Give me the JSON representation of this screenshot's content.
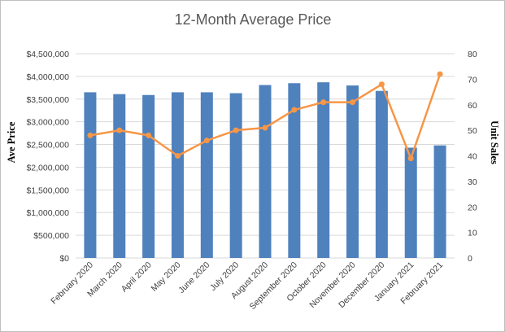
{
  "chart_data": {
    "type": "bar",
    "title": "12-Month Average Price",
    "xlabel": "",
    "ylabel": "Ave Price",
    "y2label": "Unit Sales",
    "categories": [
      "February 2020",
      "March 2020",
      "April 2020",
      "May 2020",
      "June 2020",
      "July 2020",
      "August 2020",
      "September 2020",
      "October 2020",
      "November 2020",
      "December 2020",
      "January 2021",
      "February 2021"
    ],
    "series": [
      {
        "type": "bar",
        "axis": "left",
        "color": "#4f81bd",
        "values": [
          3650000,
          3610000,
          3590000,
          3650000,
          3650000,
          3630000,
          3810000,
          3850000,
          3870000,
          3800000,
          3680000,
          2430000,
          2480000
        ]
      },
      {
        "type": "line",
        "axis": "right",
        "color": "#f79646",
        "values": [
          48,
          50,
          48,
          40,
          46,
          50,
          51,
          58,
          61,
          61,
          68,
          39,
          72
        ]
      }
    ],
    "ylim": [
      0,
      4500000
    ],
    "y2lim": [
      0,
      80
    ],
    "yticks": [
      "$0",
      "$500,000",
      "$1,000,000",
      "$1,500,000",
      "$2,000,000",
      "$2,500,000",
      "$3,000,000",
      "$3,500,000",
      "$4,000,000",
      "$4,500,000"
    ],
    "y2ticks": [
      "0",
      "10",
      "20",
      "30",
      "40",
      "50",
      "60",
      "70",
      "80"
    ],
    "grid": true,
    "legend": "none"
  }
}
